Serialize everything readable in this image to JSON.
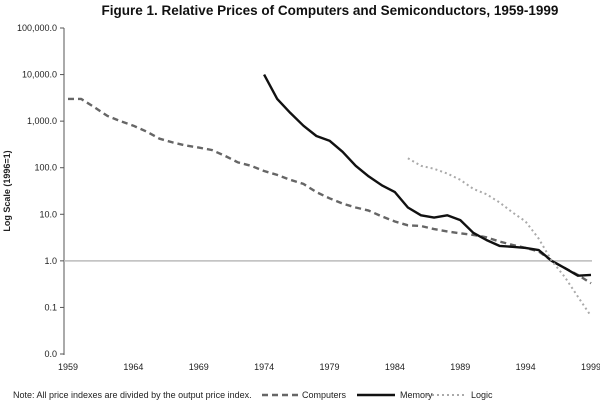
{
  "chart_data": {
    "type": "line",
    "title": "Figure 1. Relative Prices of Computers and Semiconductors, 1959-1999",
    "ylabel": "Log Scale (1996=1)",
    "xlabel": "",
    "yscale": "log",
    "ylim": [
      0.01,
      100000
    ],
    "xlim": [
      1959,
      1999
    ],
    "y_ticks": [
      {
        "value": 100000,
        "label": "100,000.0"
      },
      {
        "value": 10000,
        "label": "10,000.0"
      },
      {
        "value": 1000,
        "label": "1,000.0"
      },
      {
        "value": 100,
        "label": "100.0"
      },
      {
        "value": 10,
        "label": "10.0"
      },
      {
        "value": 1,
        "label": "1.0"
      },
      {
        "value": 0.1,
        "label": "0.1"
      },
      {
        "value": 0.01,
        "label": "0.0"
      }
    ],
    "x_ticks": [
      "1959",
      "1964",
      "1969",
      "1974",
      "1979",
      "1984",
      "1989",
      "1994",
      "1999"
    ],
    "reference_line": 1.0,
    "grid": false,
    "legend_placement": "bottom",
    "note": "Note: All price indexes are divided by the output price index.",
    "series": [
      {
        "name": "Computers",
        "style": "dashed",
        "color": "#666666",
        "x": [
          1959,
          1960,
          1961,
          1962,
          1963,
          1964,
          1965,
          1966,
          1967,
          1968,
          1969,
          1970,
          1971,
          1972,
          1973,
          1974,
          1975,
          1976,
          1977,
          1978,
          1979,
          1980,
          1981,
          1982,
          1983,
          1984,
          1985,
          1986,
          1987,
          1988,
          1989,
          1990,
          1991,
          1992,
          1993,
          1994,
          1995,
          1996,
          1997,
          1998,
          1999
        ],
        "values": [
          3000,
          3000,
          2000,
          1300,
          1000,
          800,
          600,
          420,
          350,
          300,
          270,
          240,
          180,
          130,
          110,
          85,
          70,
          55,
          45,
          30,
          22,
          17,
          14,
          12,
          9,
          7,
          5.8,
          5.6,
          4.8,
          4.3,
          3.9,
          3.6,
          3.2,
          2.6,
          2.2,
          1.9,
          1.6,
          1.0,
          0.7,
          0.5,
          0.33
        ]
      },
      {
        "name": "Memory",
        "style": "solid",
        "color": "#111111",
        "x": [
          1974,
          1975,
          1976,
          1977,
          1978,
          1979,
          1980,
          1981,
          1982,
          1983,
          1984,
          1985,
          1986,
          1987,
          1988,
          1989,
          1990,
          1991,
          1992,
          1993,
          1994,
          1995,
          1996,
          1997,
          1998,
          1999
        ],
        "values": [
          10000,
          3000,
          1500,
          800,
          480,
          380,
          220,
          110,
          65,
          42,
          30,
          14,
          9.5,
          8.5,
          9.5,
          7.5,
          4,
          2.8,
          2.1,
          2.0,
          1.9,
          1.7,
          1.0,
          0.7,
          0.48,
          0.5
        ]
      },
      {
        "name": "Logic",
        "style": "dotted",
        "color": "#aaaaaa",
        "x": [
          1985,
          1986,
          1987,
          1988,
          1989,
          1990,
          1991,
          1992,
          1993,
          1994,
          1995,
          1996,
          1997,
          1998,
          1999
        ],
        "values": [
          160,
          110,
          95,
          75,
          55,
          35,
          27,
          18,
          11,
          7,
          3,
          1.0,
          0.45,
          0.17,
          0.065
        ]
      }
    ]
  }
}
